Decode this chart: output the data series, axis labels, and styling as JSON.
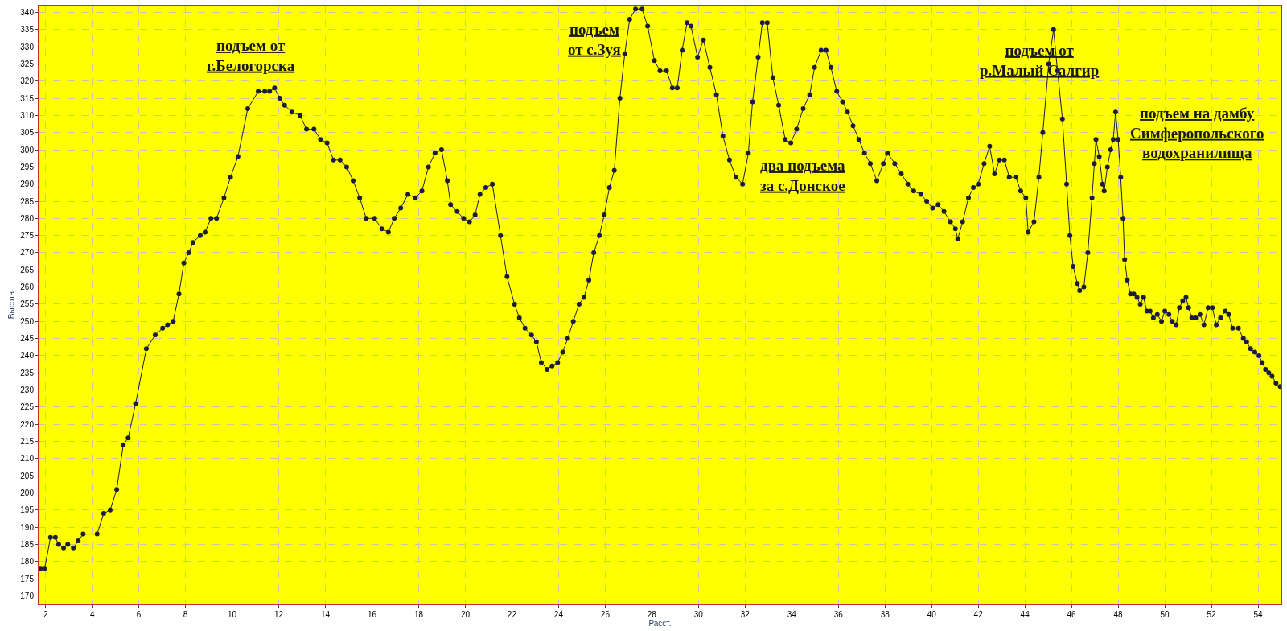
{
  "chart_data": {
    "type": "line",
    "xlabel": "Расст.",
    "ylabel": "Высота",
    "x": [
      1.79,
      1.96,
      2.21,
      2.42,
      2.56,
      2.77,
      2.95,
      3.19,
      3.4,
      3.61,
      4.21,
      4.49,
      4.77,
      5.05,
      5.33,
      5.54,
      5.86,
      6.32,
      6.7,
      7.02,
      7.23,
      7.47,
      7.72,
      7.93,
      8.14,
      8.32,
      8.63,
      8.84,
      9.09,
      9.33,
      9.65,
      9.93,
      10.25,
      10.67,
      11.12,
      11.4,
      11.61,
      11.82,
      12.04,
      12.25,
      12.56,
      12.91,
      13.19,
      13.51,
      13.79,
      14.07,
      14.35,
      14.63,
      14.91,
      15.19,
      15.47,
      15.75,
      16.11,
      16.42,
      16.7,
      16.95,
      17.23,
      17.54,
      17.86,
      18.14,
      18.42,
      18.7,
      18.98,
      19.23,
      19.37,
      19.65,
      19.93,
      20.18,
      20.42,
      20.63,
      20.88,
      21.16,
      21.51,
      21.79,
      22.11,
      22.32,
      22.56,
      22.84,
      23.05,
      23.26,
      23.51,
      23.72,
      23.96,
      24.18,
      24.39,
      24.63,
      24.88,
      25.09,
      25.3,
      25.51,
      25.75,
      25.96,
      26.18,
      26.39,
      26.63,
      26.84,
      27.05,
      27.3,
      27.58,
      27.82,
      28.11,
      28.35,
      28.63,
      28.88,
      29.09,
      29.3,
      29.51,
      29.68,
      29.96,
      30.21,
      30.49,
      30.77,
      31.05,
      31.33,
      31.61,
      31.89,
      32.14,
      32.32,
      32.56,
      32.74,
      32.95,
      33.19,
      33.44,
      33.72,
      33.96,
      34.21,
      34.49,
      34.77,
      34.98,
      35.26,
      35.47,
      35.68,
      35.93,
      36.18,
      36.39,
      36.63,
      36.88,
      37.12,
      37.37,
      37.65,
      37.93,
      38.11,
      38.42,
      38.7,
      38.98,
      39.23,
      39.54,
      39.79,
      40.04,
      40.28,
      40.53,
      40.81,
      41.02,
      41.12,
      41.33,
      41.58,
      41.79,
      42.0,
      42.25,
      42.49,
      42.7,
      42.91,
      43.12,
      43.33,
      43.61,
      43.82,
      44.04,
      44.14,
      44.39,
      44.6,
      44.77,
      45.02,
      45.23,
      45.4,
      45.61,
      45.79,
      45.93,
      46.07,
      46.25,
      46.35,
      46.53,
      46.7,
      46.88,
      46.98,
      47.05,
      47.19,
      47.33,
      47.4,
      47.54,
      47.68,
      47.79,
      47.89,
      48.0,
      48.11,
      48.21,
      48.28,
      48.39,
      48.53,
      48.67,
      48.81,
      48.95,
      49.09,
      49.23,
      49.37,
      49.51,
      49.68,
      49.86,
      50.0,
      50.18,
      50.32,
      50.49,
      50.63,
      50.77,
      50.91,
      51.02,
      51.16,
      51.33,
      51.51,
      51.68,
      51.86,
      52.04,
      52.21,
      52.39,
      52.6,
      52.74,
      52.91,
      53.16,
      53.37,
      53.51,
      53.68,
      53.86,
      54.04,
      54.18,
      54.32,
      54.46,
      54.6,
      54.77,
      54.95
    ],
    "series": [
      {
        "color": "#1c1c40",
        "values": [
          178,
          178,
          187,
          187,
          185,
          184,
          185,
          184,
          186,
          188,
          188,
          194,
          195,
          201,
          214,
          216,
          226,
          242,
          246,
          248,
          249,
          250,
          258,
          267,
          270,
          273,
          275,
          276,
          280,
          280,
          286,
          292,
          298,
          312,
          317,
          317,
          317,
          318,
          315,
          313,
          311,
          310,
          306,
          306,
          303,
          302,
          297,
          297,
          295,
          291,
          286,
          280,
          280,
          277,
          276,
          280,
          283,
          287,
          286,
          288,
          295,
          299,
          300,
          291,
          284,
          282,
          280,
          279,
          281,
          287,
          289,
          290,
          275,
          263,
          255,
          251,
          248,
          246,
          244,
          238,
          236,
          237,
          238,
          241,
          245,
          250,
          255,
          257,
          262,
          270,
          275,
          281,
          289,
          294,
          315,
          328,
          338,
          341,
          341,
          336,
          326,
          323,
          323,
          318,
          318,
          329,
          337,
          336,
          327,
          332,
          324,
          316,
          304,
          297,
          292,
          290,
          299,
          314,
          327,
          337,
          337,
          321,
          313,
          303,
          302,
          306,
          312,
          316,
          324,
          329,
          329,
          324,
          317,
          314,
          311,
          307,
          303,
          299,
          296,
          291,
          296,
          299,
          296,
          293,
          290,
          288,
          287,
          285,
          283,
          284,
          282,
          279,
          277,
          274,
          279,
          286,
          289,
          290,
          296,
          301,
          293,
          297,
          297,
          292,
          292,
          288,
          286,
          276,
          279,
          292,
          305,
          325,
          335,
          323,
          309,
          290,
          275,
          266,
          261,
          259,
          260,
          270,
          286,
          296,
          303,
          298,
          290,
          288,
          295,
          300,
          303,
          311,
          303,
          292,
          280,
          268,
          262,
          258,
          258,
          257,
          255,
          257,
          253,
          253,
          251,
          252,
          250,
          253,
          252,
          250,
          249,
          254,
          256,
          257,
          254,
          251,
          251,
          252,
          249,
          254,
          254,
          249,
          251,
          253,
          252,
          248,
          248,
          245,
          244,
          242,
          241,
          240,
          238,
          236,
          235,
          234,
          232,
          231
        ]
      }
    ],
    "xlim": [
      1.7,
      55.0
    ],
    "ylim": [
      167.5,
      342
    ],
    "xticks": [
      2,
      4,
      6,
      8,
      10,
      12,
      14,
      16,
      18,
      20,
      22,
      24,
      26,
      28,
      30,
      32,
      34,
      36,
      38,
      40,
      42,
      44,
      46,
      48,
      50,
      52,
      54
    ],
    "yticks": [
      170,
      175,
      180,
      185,
      190,
      195,
      200,
      205,
      210,
      215,
      220,
      225,
      230,
      235,
      240,
      245,
      250,
      255,
      260,
      265,
      270,
      275,
      280,
      285,
      290,
      295,
      300,
      305,
      310,
      315,
      320,
      325,
      330,
      335,
      340
    ],
    "grid": true,
    "marker": "circle",
    "line_style": "solid",
    "annotations": [
      "подъем от\nг.Белогорска",
      "подъем\nот с.Зуя",
      "два подъема\nза с.Донское",
      "подъем от\nр.Малый Салгир",
      "подъем на дамбу\nСимферопольского\nводохранилища"
    ]
  }
}
